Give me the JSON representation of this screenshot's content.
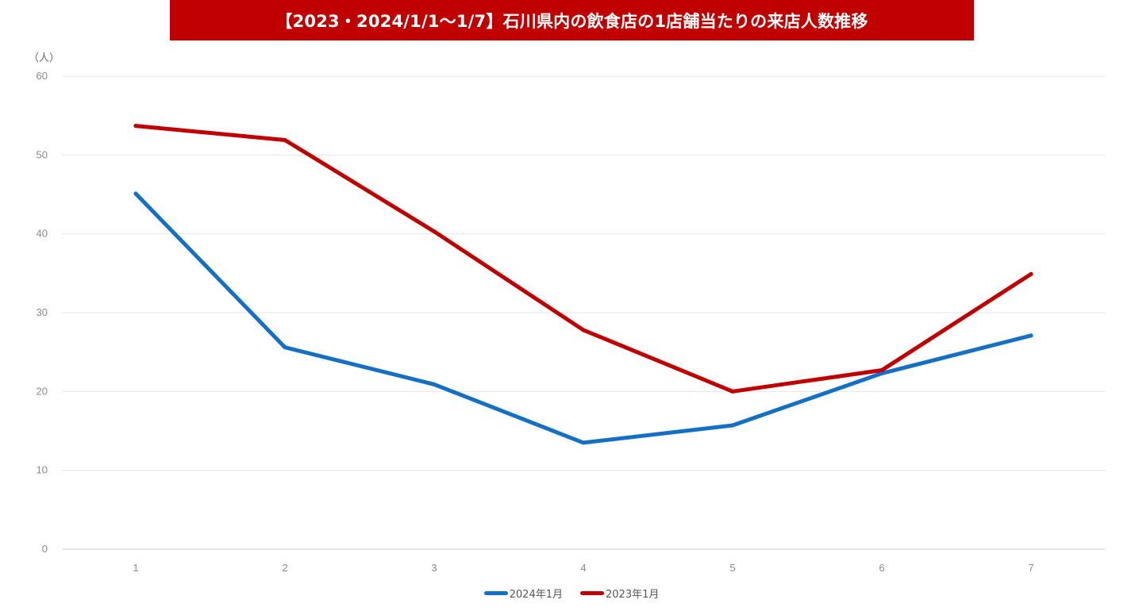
{
  "chart_data": {
    "type": "line",
    "title": "【2023・2024/1/1～1/7】石川県内の飲食店の1店舗当たりの来店人数推移",
    "ylabel": "（人）",
    "xlabel": "",
    "categories": [
      "1",
      "2",
      "3",
      "4",
      "5",
      "6",
      "7"
    ],
    "ylim": [
      0,
      60
    ],
    "yticks": [
      0,
      10,
      20,
      30,
      40,
      50,
      60
    ],
    "grid": true,
    "legend_position": "bottom",
    "series": [
      {
        "name": "2024年1月",
        "color": "#1470c4",
        "values": [
          45.1,
          25.6,
          20.9,
          13.5,
          15.7,
          22.3,
          27.1
        ]
      },
      {
        "name": "2023年1月",
        "color": "#c00000",
        "values": [
          53.7,
          51.9,
          40.3,
          27.8,
          20.0,
          22.7,
          34.9
        ]
      }
    ]
  }
}
